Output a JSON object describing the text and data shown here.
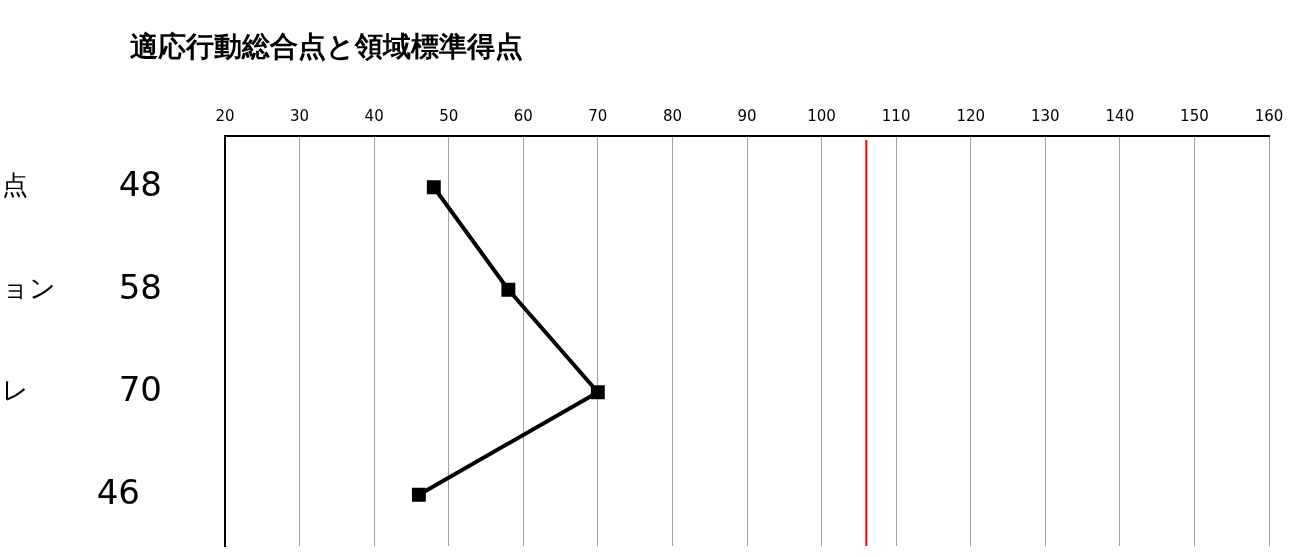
{
  "chart_data": {
    "type": "line",
    "orientation": "horizontal",
    "title": "適応行動総合点と領域標準得点",
    "categories": [
      "点",
      "ョン",
      "レ",
      null
    ],
    "series": [
      {
        "color": "#000000",
        "values": [
          48,
          58,
          70,
          46
        ]
      }
    ],
    "xlim": [
      20,
      160
    ],
    "xticks": [
      20,
      30,
      40,
      50,
      60,
      70,
      80,
      90,
      100,
      110,
      120,
      130,
      140,
      150,
      160
    ],
    "ref_lines": [
      {
        "axis": "x",
        "value": 106,
        "color": "#ff0000"
      }
    ],
    "grid": "x",
    "marker": "square",
    "line_style": "solid",
    "annotations": [
      "48",
      "58",
      "70",
      "46"
    ],
    "legend": false
  }
}
